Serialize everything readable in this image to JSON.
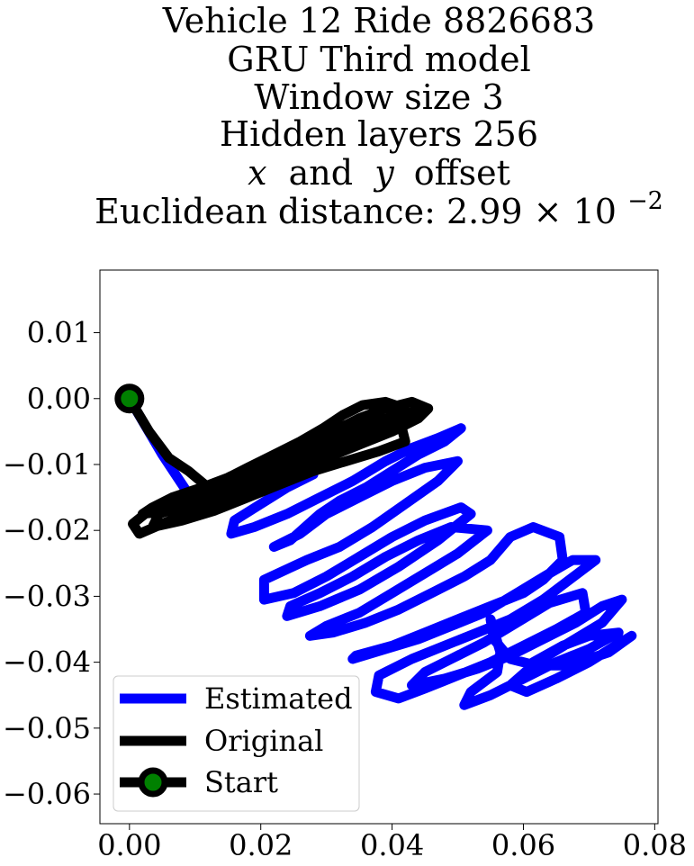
{
  "chart_data": {
    "type": "line",
    "title_lines": [
      "Vehicle 12 Ride 8826683",
      "GRU Third model",
      "Window size 3",
      "Hidden layers 256",
      "offset",
      "Euclidean distance: 2.99×10⁻²"
    ],
    "title_math": {
      "x_symbol": "x",
      "and_word": "and",
      "y_symbol": "y",
      "suffix": "offset",
      "distance_prefix": "Euclidean distance: 2.99",
      "times": "×",
      "base": "10",
      "exponent": "−2"
    },
    "xlim": [
      -0.0045,
      0.0805
    ],
    "ylim": [
      -0.0645,
      0.0195
    ],
    "xticks": [
      {
        "value": 0.0,
        "label": "0.00"
      },
      {
        "value": 0.02,
        "label": "0.02"
      },
      {
        "value": 0.04,
        "label": "0.04"
      },
      {
        "value": 0.06,
        "label": "0.06"
      },
      {
        "value": 0.08,
        "label": "0.08"
      }
    ],
    "yticks": [
      {
        "value": 0.01,
        "label": "0.01"
      },
      {
        "value": 0.0,
        "label": "0.00"
      },
      {
        "value": -0.01,
        "label": "−0.01"
      },
      {
        "value": -0.02,
        "label": "−0.02"
      },
      {
        "value": -0.03,
        "label": "−0.03"
      },
      {
        "value": -0.04,
        "label": "−0.04"
      },
      {
        "value": -0.05,
        "label": "−0.05"
      },
      {
        "value": -0.06,
        "label": "−0.06"
      }
    ],
    "grid": false,
    "legend_position": "lower-left",
    "series": [
      {
        "name": "Estimated",
        "color": "#0000ff",
        "points": [
          [
            0.0,
            0.0
          ],
          [
            0.005,
            -0.0085
          ],
          [
            0.009,
            -0.0145
          ],
          [
            0.012,
            -0.016
          ],
          [
            0.016,
            -0.0145
          ],
          [
            0.021,
            -0.013
          ],
          [
            0.026,
            -0.011
          ],
          [
            0.028,
            -0.0115
          ],
          [
            0.024,
            -0.0135
          ],
          [
            0.02,
            -0.016
          ],
          [
            0.016,
            -0.0185
          ],
          [
            0.0155,
            -0.0205
          ],
          [
            0.019,
            -0.0195
          ],
          [
            0.024,
            -0.0175
          ],
          [
            0.029,
            -0.015
          ],
          [
            0.034,
            -0.0125
          ],
          [
            0.039,
            -0.0095
          ],
          [
            0.043,
            -0.0075
          ],
          [
            0.047,
            -0.006
          ],
          [
            0.0505,
            -0.0045
          ],
          [
            0.048,
            -0.0065
          ],
          [
            0.044,
            -0.0085
          ],
          [
            0.04,
            -0.011
          ],
          [
            0.036,
            -0.0135
          ],
          [
            0.032,
            -0.0155
          ],
          [
            0.029,
            -0.0175
          ],
          [
            0.0245,
            -0.0215
          ],
          [
            0.022,
            -0.0225
          ],
          [
            0.026,
            -0.0205
          ],
          [
            0.03,
            -0.0175
          ],
          [
            0.035,
            -0.015
          ],
          [
            0.04,
            -0.0125
          ],
          [
            0.045,
            -0.0105
          ],
          [
            0.05,
            -0.0095
          ],
          [
            0.047,
            -0.0125
          ],
          [
            0.042,
            -0.016
          ],
          [
            0.037,
            -0.0195
          ],
          [
            0.032,
            -0.0225
          ],
          [
            0.027,
            -0.0245
          ],
          [
            0.0205,
            -0.0275
          ],
          [
            0.0205,
            -0.0305
          ],
          [
            0.025,
            -0.0295
          ],
          [
            0.03,
            -0.027
          ],
          [
            0.035,
            -0.024
          ],
          [
            0.04,
            -0.021
          ],
          [
            0.045,
            -0.0185
          ],
          [
            0.0505,
            -0.0165
          ],
          [
            0.052,
            -0.0175
          ],
          [
            0.047,
            -0.0215
          ],
          [
            0.041,
            -0.0255
          ],
          [
            0.035,
            -0.029
          ],
          [
            0.029,
            -0.0315
          ],
          [
            0.024,
            -0.033
          ],
          [
            0.0245,
            -0.0315
          ],
          [
            0.029,
            -0.0295
          ],
          [
            0.034,
            -0.027
          ],
          [
            0.039,
            -0.024
          ],
          [
            0.044,
            -0.0215
          ],
          [
            0.049,
            -0.0195
          ],
          [
            0.0545,
            -0.02
          ],
          [
            0.05,
            -0.0235
          ],
          [
            0.045,
            -0.0265
          ],
          [
            0.04,
            -0.0295
          ],
          [
            0.035,
            -0.0325
          ],
          [
            0.03,
            -0.0345
          ],
          [
            0.0275,
            -0.036
          ],
          [
            0.031,
            -0.0355
          ],
          [
            0.036,
            -0.034
          ],
          [
            0.041,
            -0.032
          ],
          [
            0.046,
            -0.0295
          ],
          [
            0.051,
            -0.027
          ],
          [
            0.055,
            -0.0245
          ],
          [
            0.058,
            -0.021
          ],
          [
            0.0615,
            -0.0195
          ],
          [
            0.0655,
            -0.021
          ],
          [
            0.066,
            -0.0245
          ],
          [
            0.063,
            -0.0275
          ],
          [
            0.06,
            -0.0295
          ],
          [
            0.055,
            -0.0315
          ],
          [
            0.05,
            -0.0335
          ],
          [
            0.045,
            -0.0355
          ],
          [
            0.04,
            -0.0375
          ],
          [
            0.0345,
            -0.039
          ],
          [
            0.034,
            -0.0395
          ],
          [
            0.039,
            -0.038
          ],
          [
            0.044,
            -0.0365
          ],
          [
            0.049,
            -0.0345
          ],
          [
            0.054,
            -0.0325
          ],
          [
            0.059,
            -0.0295
          ],
          [
            0.064,
            -0.0265
          ],
          [
            0.0675,
            -0.0245
          ],
          [
            0.071,
            -0.0245
          ],
          [
            0.067,
            -0.0275
          ],
          [
            0.063,
            -0.0305
          ],
          [
            0.058,
            -0.0335
          ],
          [
            0.053,
            -0.0355
          ],
          [
            0.048,
            -0.0375
          ],
          [
            0.043,
            -0.0395
          ],
          [
            0.038,
            -0.042
          ],
          [
            0.0375,
            -0.0445
          ],
          [
            0.041,
            -0.0455
          ],
          [
            0.045,
            -0.044
          ],
          [
            0.05,
            -0.042
          ],
          [
            0.055,
            -0.04
          ],
          [
            0.06,
            -0.0375
          ],
          [
            0.065,
            -0.035
          ],
          [
            0.0695,
            -0.0325
          ],
          [
            0.069,
            -0.0295
          ],
          [
            0.064,
            -0.031
          ],
          [
            0.059,
            -0.034
          ],
          [
            0.054,
            -0.037
          ],
          [
            0.049,
            -0.0395
          ],
          [
            0.045,
            -0.0415
          ],
          [
            0.043,
            -0.0435
          ],
          [
            0.048,
            -0.0425
          ],
          [
            0.053,
            -0.041
          ],
          [
            0.058,
            -0.039
          ],
          [
            0.063,
            -0.0365
          ],
          [
            0.068,
            -0.034
          ],
          [
            0.072,
            -0.0315
          ],
          [
            0.075,
            -0.0305
          ],
          [
            0.072,
            -0.034
          ],
          [
            0.067,
            -0.037
          ],
          [
            0.062,
            -0.04
          ],
          [
            0.058,
            -0.0435
          ],
          [
            0.0605,
            -0.0445
          ],
          [
            0.065,
            -0.0425
          ],
          [
            0.07,
            -0.04
          ],
          [
            0.074,
            -0.0375
          ],
          [
            0.0765,
            -0.036
          ],
          [
            0.073,
            -0.0385
          ],
          [
            0.067,
            -0.0405
          ],
          [
            0.062,
            -0.0405
          ],
          [
            0.058,
            -0.0395
          ],
          [
            0.0555,
            -0.0365
          ],
          [
            0.055,
            -0.0335
          ],
          [
            0.0565,
            -0.0385
          ],
          [
            0.056,
            -0.0415
          ],
          [
            0.052,
            -0.0445
          ],
          [
            0.051,
            -0.0465
          ],
          [
            0.055,
            -0.045
          ],
          [
            0.06,
            -0.0425
          ],
          [
            0.065,
            -0.04
          ],
          [
            0.07,
            -0.038
          ],
          [
            0.0745,
            -0.0355
          ],
          [
            0.07,
            -0.036
          ],
          [
            0.066,
            -0.0375
          ],
          [
            0.0615,
            -0.04
          ]
        ]
      },
      {
        "name": "Original",
        "color": "#000000",
        "points": [
          [
            0.0,
            0.0
          ],
          [
            0.003,
            -0.005
          ],
          [
            0.006,
            -0.009
          ],
          [
            0.009,
            -0.011
          ],
          [
            0.012,
            -0.0135
          ],
          [
            0.014,
            -0.0155
          ],
          [
            0.011,
            -0.016
          ],
          [
            0.007,
            -0.0165
          ],
          [
            0.003,
            -0.017
          ],
          [
            0.0005,
            -0.019
          ],
          [
            0.0015,
            -0.0205
          ],
          [
            0.005,
            -0.019
          ],
          [
            0.01,
            -0.017
          ],
          [
            0.015,
            -0.015
          ],
          [
            0.02,
            -0.013
          ],
          [
            0.025,
            -0.011
          ],
          [
            0.03,
            -0.009
          ],
          [
            0.035,
            -0.007
          ],
          [
            0.04,
            -0.005
          ],
          [
            0.044,
            -0.003
          ],
          [
            0.0455,
            -0.0015
          ],
          [
            0.043,
            -0.0005
          ],
          [
            0.039,
            -0.0015
          ],
          [
            0.035,
            -0.003
          ],
          [
            0.031,
            -0.005
          ],
          [
            0.027,
            -0.007
          ],
          [
            0.023,
            -0.009
          ],
          [
            0.019,
            -0.0105
          ],
          [
            0.015,
            -0.012
          ],
          [
            0.011,
            -0.0135
          ],
          [
            0.0065,
            -0.015
          ],
          [
            0.0035,
            -0.0165
          ],
          [
            0.002,
            -0.0175
          ],
          [
            0.006,
            -0.017
          ],
          [
            0.01,
            -0.0155
          ],
          [
            0.015,
            -0.0135
          ],
          [
            0.02,
            -0.0115
          ],
          [
            0.025,
            -0.0095
          ],
          [
            0.03,
            -0.0075
          ],
          [
            0.035,
            -0.0055
          ],
          [
            0.04,
            -0.0035
          ],
          [
            0.042,
            -0.0015
          ],
          [
            0.039,
            -0.0005
          ],
          [
            0.0355,
            -0.001
          ],
          [
            0.0325,
            -0.0025
          ],
          [
            0.0295,
            -0.0045
          ],
          [
            0.026,
            -0.0065
          ],
          [
            0.022,
            -0.0085
          ],
          [
            0.018,
            -0.0105
          ],
          [
            0.014,
            -0.0125
          ],
          [
            0.01,
            -0.0145
          ],
          [
            0.006,
            -0.016
          ],
          [
            0.004,
            -0.0165
          ],
          [
            0.008,
            -0.016
          ],
          [
            0.013,
            -0.014
          ],
          [
            0.018,
            -0.012
          ],
          [
            0.023,
            -0.01
          ],
          [
            0.028,
            -0.008
          ],
          [
            0.033,
            -0.006
          ],
          [
            0.037,
            -0.004
          ],
          [
            0.0405,
            -0.0025
          ],
          [
            0.0415,
            -0.0045
          ],
          [
            0.042,
            -0.0065
          ],
          [
            0.038,
            -0.008
          ],
          [
            0.033,
            -0.0095
          ],
          [
            0.028,
            -0.011
          ],
          [
            0.023,
            -0.013
          ],
          [
            0.018,
            -0.015
          ],
          [
            0.013,
            -0.017
          ],
          [
            0.008,
            -0.0185
          ],
          [
            0.0035,
            -0.0195
          ],
          [
            0.0045,
            -0.0175
          ],
          [
            0.009,
            -0.016
          ],
          [
            0.014,
            -0.0145
          ],
          [
            0.019,
            -0.0125
          ],
          [
            0.024,
            -0.0105
          ],
          [
            0.029,
            -0.0085
          ],
          [
            0.034,
            -0.0065
          ],
          [
            0.039,
            -0.0045
          ],
          [
            0.0435,
            -0.0025
          ],
          [
            0.0455,
            -0.0015
          ],
          [
            0.041,
            -0.0025
          ],
          [
            0.036,
            -0.004
          ],
          [
            0.031,
            -0.006
          ],
          [
            0.026,
            -0.008
          ],
          [
            0.021,
            -0.01
          ],
          [
            0.016,
            -0.012
          ],
          [
            0.011,
            -0.0145
          ],
          [
            0.006,
            -0.0165
          ],
          [
            0.0095,
            -0.0165
          ],
          [
            0.0125,
            -0.0165
          ]
        ]
      }
    ],
    "start": {
      "x": 0.0,
      "y": 0.0,
      "outer_color": "#000000",
      "inner_color": "#008000"
    },
    "legend": [
      {
        "label": "Estimated",
        "color": "#0000ff",
        "marker": false
      },
      {
        "label": "Original",
        "color": "#000000",
        "marker": false
      },
      {
        "label": "Start",
        "color": "#000000",
        "marker": true,
        "marker_inner": "#008000"
      }
    ]
  }
}
